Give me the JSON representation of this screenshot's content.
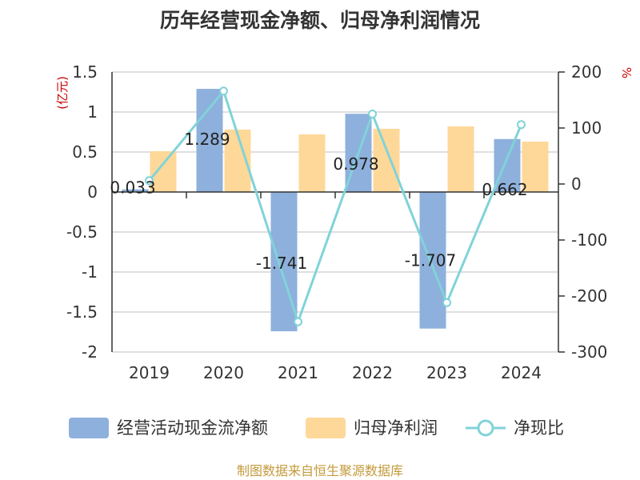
{
  "title": "历年经营现金净额、归母净利润情况",
  "source": "制图数据来自恒生聚源数据库",
  "colors": {
    "cash": "#8eb0dc",
    "profit": "#fed898",
    "ratio": "#80d3d9",
    "unit": "#cc0000",
    "source": "#c49a3a"
  },
  "chart_data": {
    "type": "bar",
    "title": "历年经营现金净额、归母净利润情况",
    "categories": [
      "2019",
      "2020",
      "2021",
      "2022",
      "2023",
      "2024"
    ],
    "left_axis": {
      "unit": "(亿元)",
      "ylim": [
        -2,
        1.5
      ],
      "ticks": [
        1.5,
        1,
        0.5,
        0,
        -0.5,
        -1,
        -1.5,
        -2
      ],
      "tick_labels": [
        "1.5",
        "1",
        "0.5",
        "0",
        "-0.5",
        "-1",
        "-1.5",
        "-2"
      ]
    },
    "right_axis": {
      "unit": "%",
      "ylim": [
        -300,
        200
      ],
      "ticks": [
        200,
        100,
        0,
        -100,
        -200,
        -300
      ],
      "tick_labels": [
        "200",
        "100",
        "0",
        "-100",
        "-200",
        "-300"
      ]
    },
    "series": [
      {
        "name": "经营活动现金流净额",
        "type": "bar",
        "axis": "left",
        "values": [
          0.033,
          1.289,
          -1.741,
          0.978,
          -1.707,
          0.662
        ],
        "labels": [
          "0.033",
          "1.289",
          "-1.741",
          "0.978",
          "-1.707",
          "0.662"
        ]
      },
      {
        "name": "归母净利润",
        "type": "bar",
        "axis": "left",
        "values": [
          0.51,
          0.78,
          0.72,
          0.79,
          0.82,
          0.63
        ]
      },
      {
        "name": "净现比",
        "type": "line",
        "axis": "right",
        "values": [
          6,
          166,
          -246,
          125,
          -212,
          106
        ]
      }
    ],
    "grid": true,
    "legend": "bottom"
  }
}
